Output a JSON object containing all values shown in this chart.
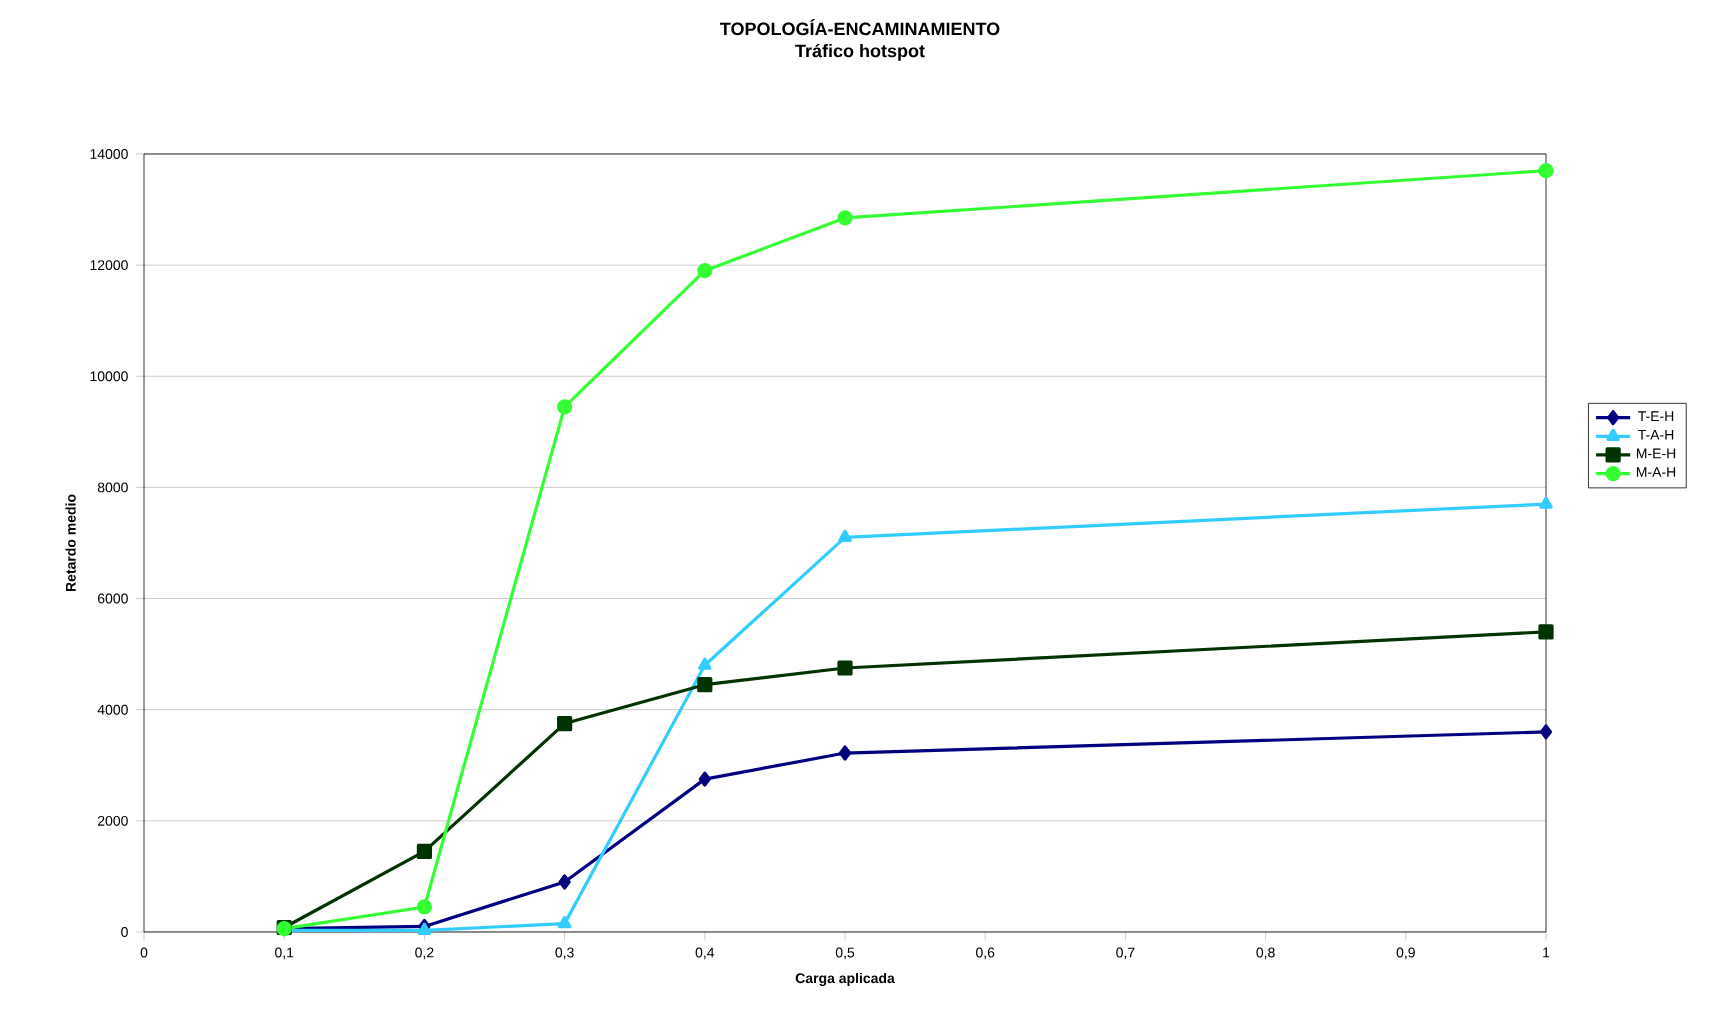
{
  "chart_data": {
    "type": "line",
    "title": "TOPOLOGÍA-ENCAMINAMIENTO",
    "subtitle": "Tráfico hotspot",
    "xlabel": "Carga aplicada",
    "ylabel": "Retardo medio",
    "x": [
      0.1,
      0.2,
      0.3,
      0.4,
      0.5,
      1
    ],
    "series": [
      {
        "name": "T-E-H",
        "color": "#000080",
        "marker": "diamond",
        "values": [
          60,
          100,
          900,
          2750,
          3220,
          3600
        ]
      },
      {
        "name": "T-A-H",
        "color": "#33ccff",
        "marker": "triangle",
        "values": [
          30,
          30,
          150,
          4800,
          7100,
          7700
        ]
      },
      {
        "name": "M-E-H",
        "color": "#003300",
        "marker": "square",
        "values": [
          80,
          1450,
          3750,
          4450,
          4750,
          5400
        ]
      },
      {
        "name": "M-A-H",
        "color": "#33ff33",
        "marker": "circle",
        "values": [
          60,
          450,
          9450,
          11900,
          12850,
          13700
        ]
      }
    ],
    "xlim": [
      0,
      1
    ],
    "ylim": [
      0,
      14000
    ],
    "xticks": [
      0,
      {
        "value": 0.1,
        "label": "0,1"
      },
      {
        "value": 0.2,
        "label": "0,2"
      },
      {
        "value": 0.3,
        "label": "0,3"
      },
      {
        "value": 0.4,
        "label": "0,4"
      },
      {
        "value": 0.5,
        "label": "0,5"
      },
      {
        "value": 0.6,
        "label": "0,6"
      },
      {
        "value": 0.7,
        "label": "0,7"
      },
      {
        "value": 0.8,
        "label": "0,8"
      },
      {
        "value": 0.9,
        "label": "0,9"
      },
      1
    ],
    "yticks": [
      0,
      2000,
      4000,
      6000,
      8000,
      10000,
      12000,
      14000
    ],
    "grid": "y",
    "legend": "right",
    "line_style": "solid"
  }
}
